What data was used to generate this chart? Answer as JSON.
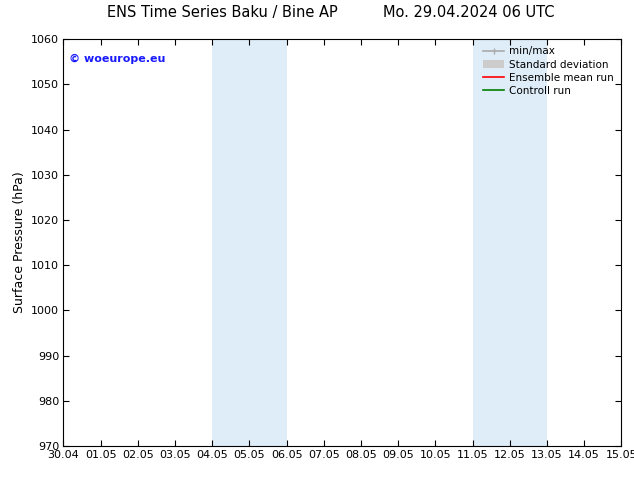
{
  "title_left": "ENS Time Series Baku / Bine AP",
  "title_right": "Mo. 29.04.2024 06 UTC",
  "ylabel": "Surface Pressure (hPa)",
  "ylim": [
    970,
    1060
  ],
  "yticks": [
    970,
    980,
    990,
    1000,
    1010,
    1020,
    1030,
    1040,
    1050,
    1060
  ],
  "xlabels": [
    "30.04",
    "01.05",
    "02.05",
    "03.05",
    "04.05",
    "05.05",
    "06.05",
    "07.05",
    "08.05",
    "09.05",
    "10.05",
    "11.05",
    "12.05",
    "13.05",
    "14.05",
    "15.05"
  ],
  "xvalues": [
    0,
    1,
    2,
    3,
    4,
    5,
    6,
    7,
    8,
    9,
    10,
    11,
    12,
    13,
    14,
    15
  ],
  "shaded_bands": [
    {
      "xmin": 4,
      "xmax": 6,
      "color": "#deedf8"
    },
    {
      "xmin": 11,
      "xmax": 13,
      "color": "#deedf8"
    }
  ],
  "watermark_text": "© woeurope.eu",
  "watermark_color": "#1a1aff",
  "watermark_fontsize": 8,
  "legend_entries": [
    {
      "label": "min/max",
      "color": "#aaaaaa",
      "lw": 1.2,
      "ls": "-",
      "type": "line_with_caps"
    },
    {
      "label": "Standard deviation",
      "color": "#cccccc",
      "lw": 6,
      "ls": "-",
      "type": "thick_line"
    },
    {
      "label": "Ensemble mean run",
      "color": "#ff0000",
      "lw": 1.2,
      "ls": "-",
      "type": "line"
    },
    {
      "label": "Controll run",
      "color": "#008000",
      "lw": 1.2,
      "ls": "-",
      "type": "line"
    }
  ],
  "bg_color": "#ffffff",
  "title_fontsize": 10.5,
  "ylabel_fontsize": 9,
  "tick_fontsize": 8,
  "legend_fontsize": 7.5
}
